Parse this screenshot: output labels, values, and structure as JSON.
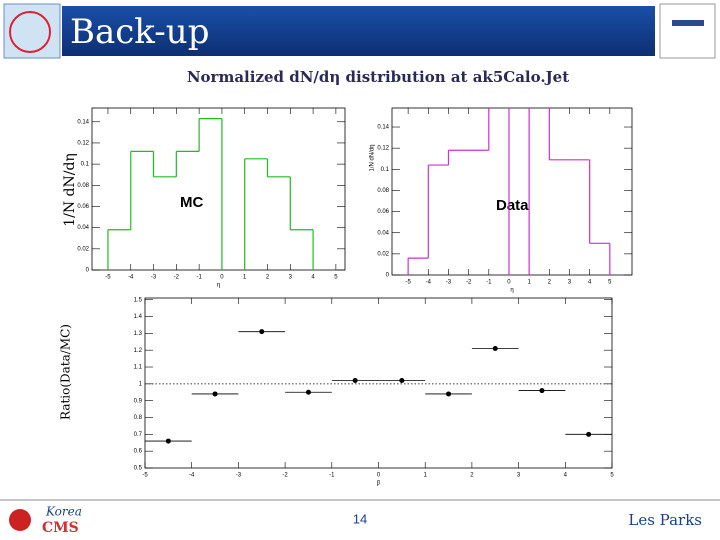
{
  "header": {
    "title": "Back-up"
  },
  "subtitle": "Normalized dN/dη distribution at ak5Calo.Jet",
  "y_label_top": "1/N dN/dη",
  "y_label_bottom": "Ratio(Data/MC)",
  "chart_data": [
    {
      "type": "histogram",
      "label": "MC",
      "color": "#22bb22",
      "bins": [
        -5,
        -4,
        -3,
        -2,
        -1,
        0,
        1,
        2,
        3,
        4,
        5
      ],
      "values": [
        0.038,
        0.112,
        0.088,
        0.112,
        0.143,
        null,
        0.105,
        0.088,
        0.038,
        null
      ],
      "x_label": "η",
      "xlim": [
        -5.7,
        5.4
      ],
      "ylim": [
        0,
        0.153
      ],
      "xticks": [
        -5,
        -4,
        -3,
        -2,
        -1,
        0,
        1,
        2,
        3,
        4,
        5
      ],
      "yticks": [
        0,
        0.02,
        0.04,
        0.06,
        0.08,
        0.1,
        0.12,
        0.14
      ]
    },
    {
      "type": "histogram",
      "label": "Data",
      "color": "#cc33cc",
      "bins": [
        -5,
        -4,
        -3,
        -2,
        -1,
        0,
        1,
        2,
        3,
        4,
        5
      ],
      "values": [
        0.016,
        0.104,
        0.118,
        0.118,
        0.16,
        null,
        0.16,
        0.109,
        0.109,
        0.03
      ],
      "x_label": "η",
      "y_label": "1/N dN/dη",
      "xlim": [
        -5.8,
        6.1
      ],
      "ylim": [
        0,
        0.158
      ],
      "xticks": [
        -5,
        -4,
        -3,
        -2,
        -1,
        0,
        1,
        2,
        3,
        4,
        5
      ],
      "yticks": [
        0,
        0.02,
        0.04,
        0.06,
        0.08,
        0.1,
        0.12,
        0.14
      ]
    },
    {
      "type": "scatter",
      "color": "#000000",
      "x": [
        -4.5,
        -3.5,
        -2.5,
        -1.5,
        -0.5,
        0.5,
        1.5,
        2.5,
        3.5,
        4.5
      ],
      "xerr": [
        0.5,
        0.5,
        0.5,
        0.5,
        0.5,
        0.5,
        0.5,
        0.5,
        0.5,
        0.5
      ],
      "values": [
        0.66,
        0.94,
        1.31,
        0.95,
        1.02,
        1.02,
        0.94,
        1.21,
        0.96,
        0.7
      ],
      "reference": 1,
      "x_label": "β",
      "xlim": [
        -5,
        5
      ],
      "ylim": [
        0.5,
        1.51
      ],
      "xticks": [
        -5,
        -4,
        -3,
        -2,
        -1,
        0,
        1,
        2,
        3,
        4,
        5
      ],
      "yticks": [
        0.5,
        0.6,
        0.7,
        0.8,
        0.9,
        1,
        1.1,
        1.2,
        1.3,
        1.4,
        1.5
      ]
    }
  ],
  "footer": {
    "logo_top": "Korea",
    "logo_bottom": "CMS",
    "page": "14",
    "author": "Les Parks"
  }
}
